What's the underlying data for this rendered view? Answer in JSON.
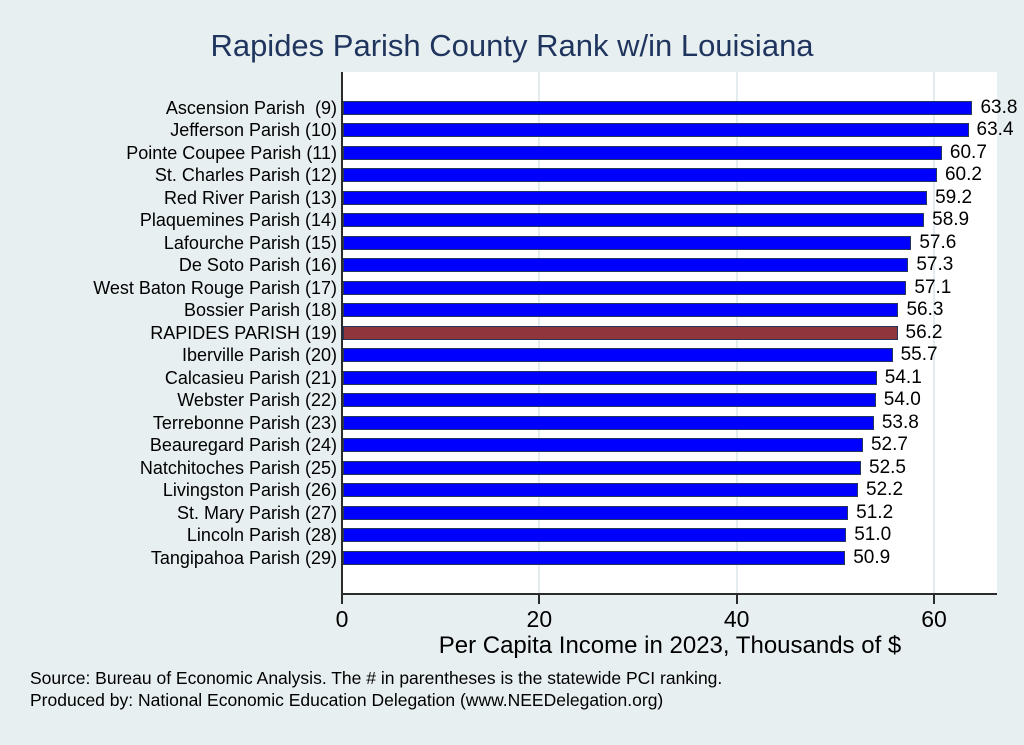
{
  "title": "Rapides Parish County Rank w/in Louisiana",
  "x_axis_title": "Per Capita Income in 2023, Thousands of $",
  "footer": {
    "line1": "Source: Bureau of Economic Analysis. The # in parentheses is the statewide PCI ranking.",
    "line2": "Produced by: National Economic Education Delegation (www.NEEDelegation.org)"
  },
  "chart_data": {
    "type": "bar",
    "orientation": "horizontal",
    "title": "Rapides Parish County Rank w/in Louisiana",
    "xlabel": "Per Capita Income in 2023, Thousands of $",
    "xlim": [
      0,
      66.4
    ],
    "xticks": [
      0,
      20,
      40,
      60
    ],
    "grid": "vertical-light",
    "legend": "none",
    "categories": [
      "Ascension Parish  (9)",
      "Jefferson Parish (10)",
      "Pointe Coupee Parish (11)",
      "St. Charles Parish (12)",
      "Red River Parish (13)",
      "Plaquemines Parish (14)",
      "Lafourche Parish (15)",
      "De Soto Parish (16)",
      "West Baton Rouge Parish (17)",
      "Bossier Parish (18)",
      "RAPIDES PARISH (19)",
      "Iberville Parish (20)",
      "Calcasieu Parish (21)",
      "Webster Parish (22)",
      "Terrebonne Parish (23)",
      "Beauregard Parish (24)",
      "Natchitoches Parish (25)",
      "Livingston Parish (26)",
      "St. Mary Parish (27)",
      "Lincoln Parish (28)",
      "Tangipahoa Parish (29)"
    ],
    "values": [
      63.8,
      63.4,
      60.7,
      60.2,
      59.2,
      58.9,
      57.6,
      57.3,
      57.1,
      56.3,
      56.2,
      55.7,
      54.1,
      54.0,
      53.8,
      52.7,
      52.5,
      52.2,
      51.2,
      51.0,
      50.9
    ],
    "value_labels": [
      "63.8",
      "63.4",
      "60.7",
      "60.2",
      "59.2",
      "58.9",
      "57.6",
      "57.3",
      "57.1",
      "56.3",
      "56.2",
      "55.7",
      "54.1",
      "54.0",
      "53.8",
      "52.7",
      "52.5",
      "52.2",
      "51.2",
      "51.0",
      "50.9"
    ],
    "highlight_index": 10,
    "highlight_category": "RAPIDES PARISH (19)"
  },
  "colors": {
    "background": "#e8eff1",
    "plot_background": "#ffffff",
    "title_color": "#1f355e",
    "axis_color": "#2b2b2b",
    "grid_color": "#e2ecef",
    "text_color": "#000000",
    "bar_color": "#0000ff",
    "bar_outline_color": "#24365a",
    "highlight_bar_color": "#90353b"
  }
}
